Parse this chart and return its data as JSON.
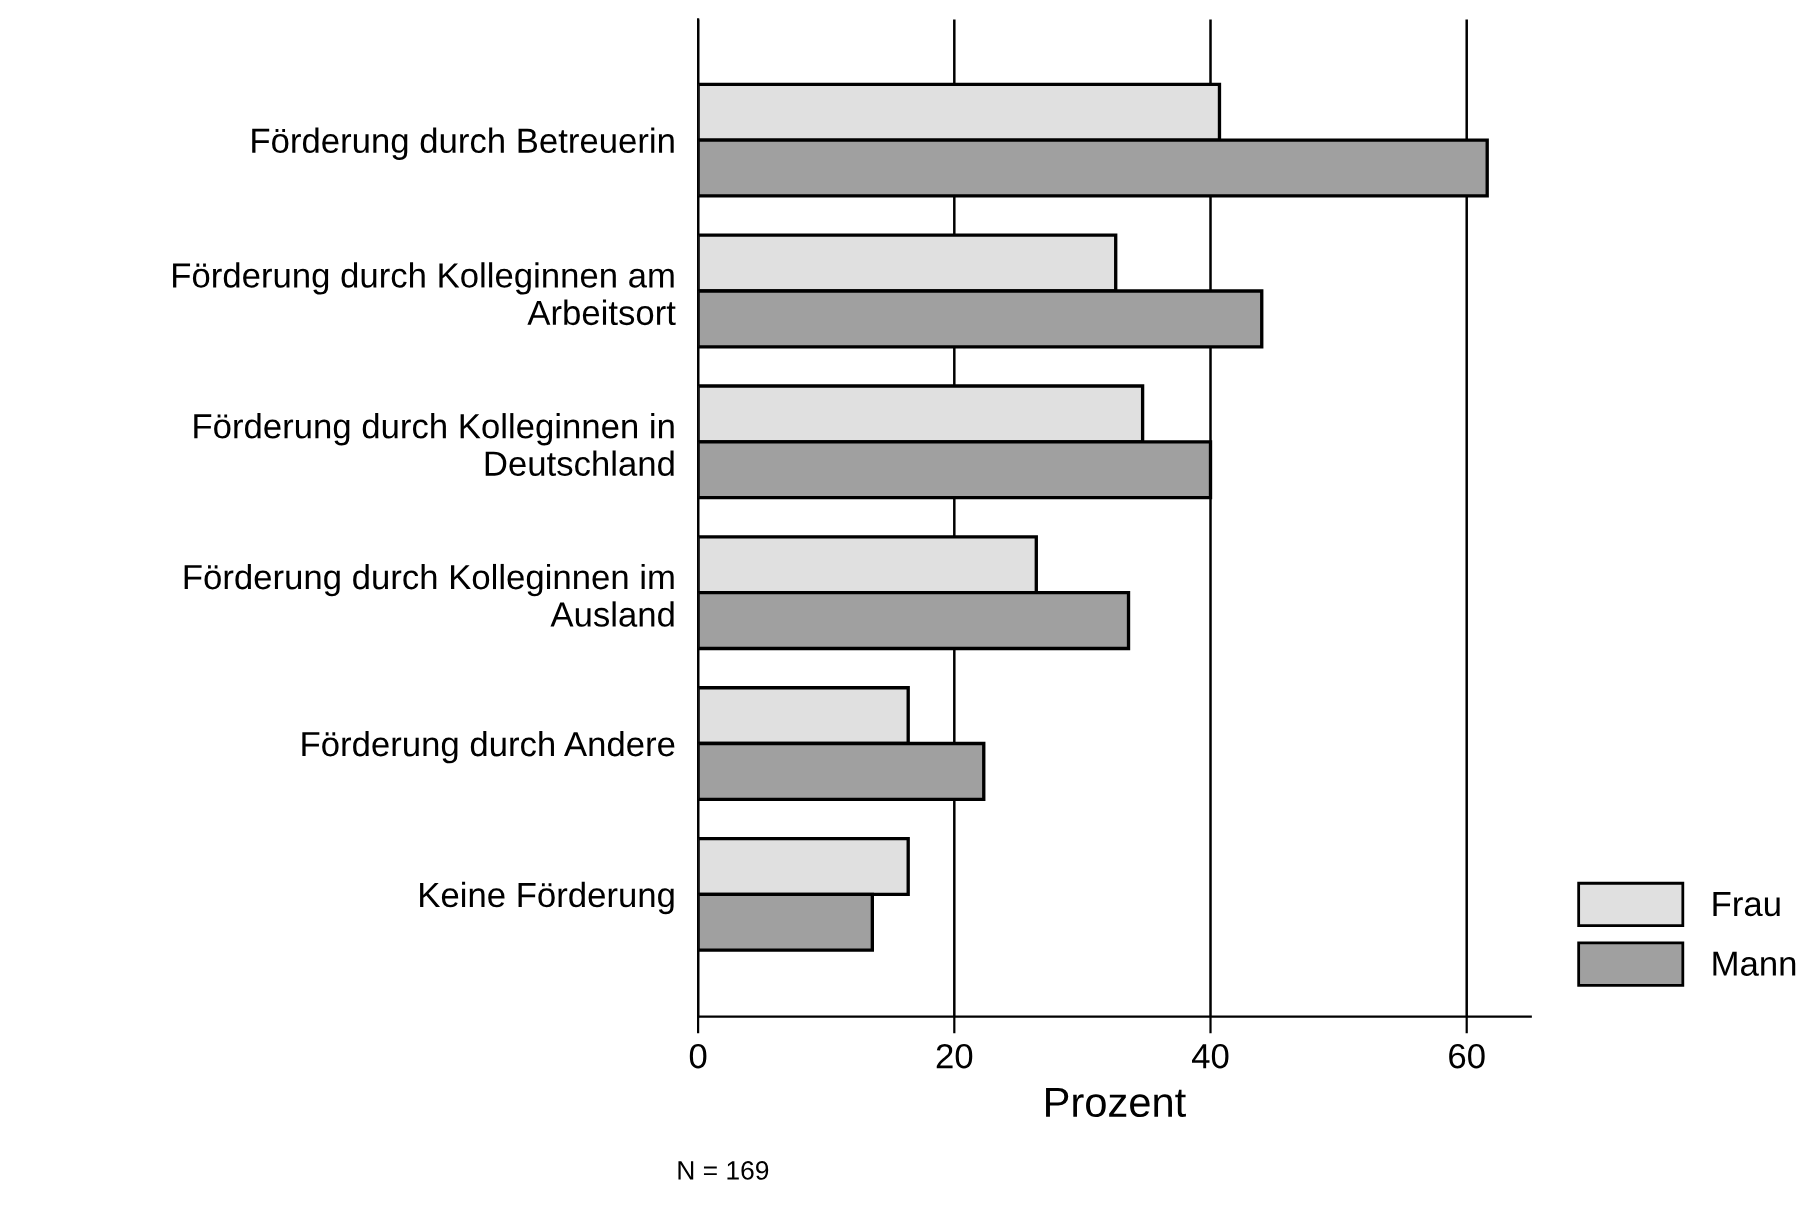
{
  "chart_data": {
    "type": "bar",
    "orientation": "horizontal",
    "xlabel": "Prozent",
    "categories": [
      "Förderung durch Betreuerin",
      "Förderung durch Kolleginnen am\nArbeitsort",
      "Förderung durch Kolleginnen in\nDeutschland",
      "Förderung durch Kolleginnen im\nAusland",
      "Förderung durch Andere",
      "Keine Förderung"
    ],
    "series": [
      {
        "name": "Frau",
        "color": "#e0e0e0",
        "values": [
          40.7,
          32.6,
          34.7,
          26.4,
          16.4,
          16.4
        ]
      },
      {
        "name": "Mann",
        "color": "#a0a0a0",
        "values": [
          61.6,
          44.0,
          40.0,
          33.6,
          22.3,
          13.6
        ]
      }
    ],
    "xlim": [
      0,
      65
    ],
    "xticks": [
      0,
      20,
      40,
      60
    ],
    "grid": "x",
    "legend": "bottom right",
    "annotations": [
      "N = 169"
    ]
  }
}
